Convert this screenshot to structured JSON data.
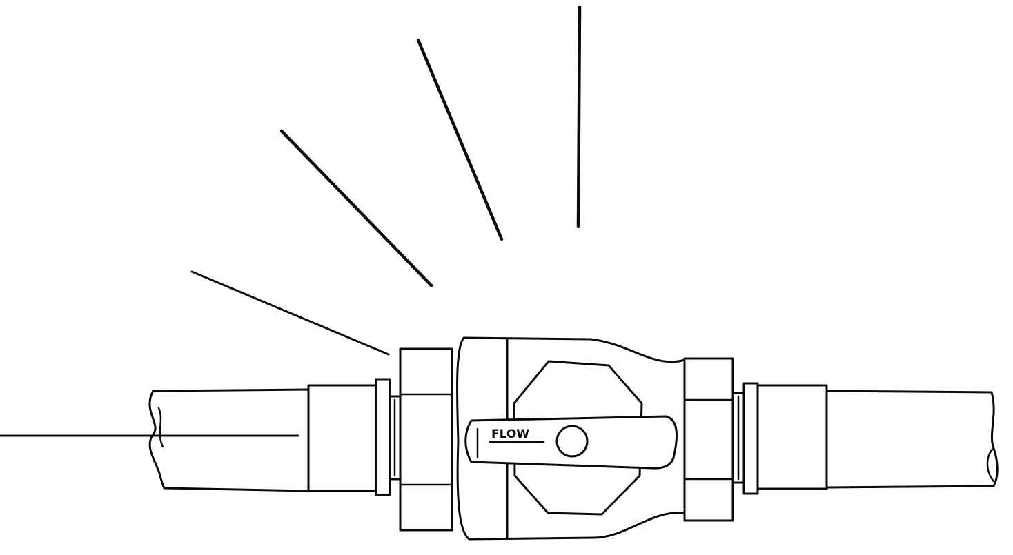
{
  "diagram": {
    "handle_label": "FLOW",
    "colors": {
      "ink": "#0b0b0b",
      "paper": "#ffffff"
    },
    "leader_lines": [
      {
        "id": "leader-1"
      },
      {
        "id": "leader-2"
      },
      {
        "id": "leader-3"
      },
      {
        "id": "leader-4"
      },
      {
        "id": "leader-5"
      },
      {
        "id": "leader-6"
      }
    ]
  }
}
